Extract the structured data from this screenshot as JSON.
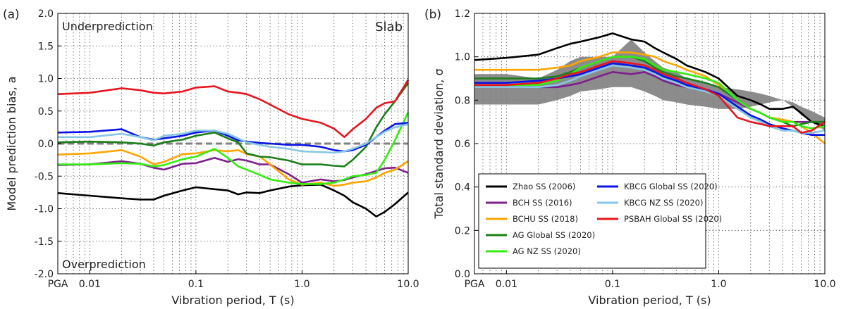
{
  "colors": {
    "zhao": "#000000",
    "bch": "#7d1f8c",
    "bchu": "#ffa500",
    "ag_global": "#1a7f1a",
    "ag_nz": "#33ee11",
    "kbcg_global": "#0a14e6",
    "kbcg_nz": "#87c6e6",
    "psbah": "#e8141e",
    "band": "#808080",
    "zero_line": "#808080"
  },
  "chart_data": [
    {
      "type": "line",
      "panel_label": "(a)",
      "xscale": "log",
      "xlim": [
        0.005,
        10
      ],
      "ylim": [
        -2.0,
        2.0
      ],
      "xlabel": "Vibration period, T (s)",
      "ylabel": "Model prediction bias, a",
      "x_ticks": [
        {
          "value": 0.005,
          "label": "PGA"
        },
        {
          "value": 0.01,
          "label": "0.01"
        },
        {
          "value": 0.1,
          "label": "0.1"
        },
        {
          "value": 1.0,
          "label": "1.0"
        },
        {
          "value": 10.0,
          "label": "10.0"
        }
      ],
      "y_ticks": [
        "-2.0",
        "-1.5",
        "-1.0",
        "-0.5",
        "0.0",
        "0.5",
        "1.0",
        "1.5",
        "2.0"
      ],
      "grid": true,
      "annotations": {
        "top_left": "Underprediction",
        "bottom_left": "Overprediction",
        "top_right": "Slab"
      },
      "reference_line": 0.0,
      "x": [
        0.005,
        0.01,
        0.02,
        0.03,
        0.04,
        0.05,
        0.075,
        0.1,
        0.15,
        0.2,
        0.25,
        0.3,
        0.4,
        0.5,
        0.75,
        1.0,
        1.5,
        2.0,
        2.5,
        3.0,
        4.0,
        5.0,
        6.0,
        7.5,
        10.0
      ],
      "series": [
        {
          "key": "zhao",
          "values": [
            -0.76,
            -0.8,
            -0.84,
            -0.86,
            -0.86,
            -0.8,
            -0.72,
            -0.67,
            -0.7,
            -0.72,
            -0.78,
            -0.75,
            -0.76,
            -0.72,
            -0.66,
            -0.64,
            -0.63,
            -0.72,
            -0.8,
            -0.9,
            -1.0,
            -1.12,
            -1.05,
            -0.93,
            -0.75
          ]
        },
        {
          "key": "bch",
          "values": [
            -0.33,
            -0.32,
            -0.27,
            -0.31,
            -0.37,
            -0.4,
            -0.31,
            -0.3,
            -0.22,
            -0.28,
            -0.24,
            -0.26,
            -0.32,
            -0.32,
            -0.47,
            -0.6,
            -0.55,
            -0.58,
            -0.56,
            -0.52,
            -0.47,
            -0.42,
            -0.38,
            -0.37,
            -0.45
          ]
        },
        {
          "key": "bchu",
          "values": [
            -0.17,
            -0.15,
            -0.1,
            -0.2,
            -0.32,
            -0.28,
            -0.16,
            -0.15,
            -0.1,
            -0.12,
            -0.1,
            -0.16,
            -0.2,
            -0.32,
            -0.55,
            -0.63,
            -0.6,
            -0.65,
            -0.63,
            -0.6,
            -0.58,
            -0.52,
            -0.45,
            -0.4,
            -0.27
          ]
        },
        {
          "key": "ag_global",
          "values": [
            0.02,
            0.03,
            0.02,
            0.0,
            -0.03,
            0.02,
            0.06,
            0.12,
            0.17,
            0.08,
            0.02,
            -0.15,
            -0.2,
            -0.21,
            -0.26,
            -0.32,
            -0.32,
            -0.34,
            -0.35,
            -0.25,
            -0.05,
            0.25,
            0.45,
            0.65,
            0.93
          ]
        },
        {
          "key": "ag_nz",
          "values": [
            -0.32,
            -0.32,
            -0.3,
            -0.31,
            -0.35,
            -0.33,
            -0.24,
            -0.2,
            -0.08,
            -0.22,
            -0.35,
            -0.4,
            -0.48,
            -0.55,
            -0.6,
            -0.62,
            -0.62,
            -0.6,
            -0.55,
            -0.5,
            -0.48,
            -0.45,
            -0.25,
            0.05,
            0.48
          ]
        },
        {
          "key": "kbcg_global",
          "values": [
            0.17,
            0.18,
            0.22,
            0.1,
            0.06,
            0.08,
            0.12,
            0.17,
            0.2,
            0.12,
            0.05,
            0.03,
            0.01,
            0.0,
            -0.02,
            -0.02,
            -0.05,
            -0.1,
            -0.12,
            -0.1,
            -0.02,
            0.1,
            0.2,
            0.3,
            0.32
          ]
        },
        {
          "key": "kbcg_nz",
          "values": [
            0.1,
            0.1,
            0.15,
            0.1,
            0.05,
            0.12,
            0.15,
            0.2,
            0.2,
            0.15,
            0.08,
            0.02,
            -0.02,
            -0.05,
            -0.08,
            -0.12,
            -0.13,
            -0.14,
            -0.12,
            -0.08,
            0.0,
            0.1,
            0.18,
            0.25,
            0.3
          ]
        },
        {
          "key": "psbah",
          "values": [
            0.76,
            0.78,
            0.85,
            0.82,
            0.78,
            0.77,
            0.8,
            0.86,
            0.88,
            0.8,
            0.78,
            0.76,
            0.68,
            0.6,
            0.45,
            0.38,
            0.32,
            0.23,
            0.1,
            0.22,
            0.38,
            0.55,
            0.62,
            0.65,
            0.98
          ]
        }
      ]
    },
    {
      "type": "line",
      "panel_label": "(b)",
      "xscale": "log",
      "xlim": [
        0.005,
        10
      ],
      "ylim": [
        0.0,
        1.2
      ],
      "xlabel": "Vibration period, T (s)",
      "ylabel": "Total standard deviation, σ",
      "x_ticks": [
        {
          "value": 0.005,
          "label": "PGA"
        },
        {
          "value": 0.01,
          "label": "0.01"
        },
        {
          "value": 0.1,
          "label": "0.1"
        },
        {
          "value": 1.0,
          "label": "1.0"
        },
        {
          "value": 10.0,
          "label": "10.0"
        }
      ],
      "y_ticks": [
        "0.0",
        "0.2",
        "0.4",
        "0.6",
        "0.8",
        "1.0",
        "1.2"
      ],
      "grid": true,
      "legend_placement": "lower-left",
      "legend_columns": 2,
      "band": {
        "x": [
          0.005,
          0.01,
          0.02,
          0.03,
          0.04,
          0.05,
          0.075,
          0.1,
          0.15,
          0.2,
          0.25,
          0.3,
          0.4,
          0.5,
          0.75,
          1.0,
          1.5,
          2.0,
          2.5,
          3.0,
          4.0,
          5.0,
          6.0,
          7.5,
          10.0
        ],
        "upper": [
          0.92,
          0.92,
          0.9,
          0.94,
          0.98,
          1.0,
          1.0,
          1.0,
          1.08,
          1.02,
          0.98,
          0.95,
          0.93,
          0.9,
          0.88,
          0.86,
          0.85,
          0.84,
          0.83,
          0.82,
          0.8,
          0.79,
          0.77,
          0.75,
          0.72
        ],
        "lower": [
          0.78,
          0.78,
          0.78,
          0.8,
          0.82,
          0.84,
          0.85,
          0.86,
          0.86,
          0.84,
          0.82,
          0.8,
          0.79,
          0.78,
          0.77,
          0.76,
          0.76,
          0.77,
          0.78,
          0.79,
          0.8,
          0.77,
          0.73,
          0.7,
          0.66
        ]
      },
      "x": [
        0.005,
        0.01,
        0.02,
        0.03,
        0.04,
        0.05,
        0.075,
        0.1,
        0.15,
        0.2,
        0.25,
        0.3,
        0.4,
        0.5,
        0.75,
        1.0,
        1.5,
        2.0,
        2.5,
        3.0,
        4.0,
        5.0,
        6.0,
        7.5,
        10.0
      ],
      "series": [
        {
          "key": "zhao",
          "name": "Zhao SS (2006)",
          "values": [
            0.985,
            0.995,
            1.01,
            1.04,
            1.06,
            1.07,
            1.09,
            1.108,
            1.08,
            1.07,
            1.04,
            1.02,
            0.99,
            0.96,
            0.93,
            0.9,
            0.82,
            0.8,
            0.78,
            0.76,
            0.76,
            0.77,
            0.74,
            0.7,
            0.68
          ]
        },
        {
          "key": "bch",
          "name": "BCH SS (2016)",
          "values": [
            0.86,
            0.86,
            0.86,
            0.86,
            0.87,
            0.88,
            0.91,
            0.93,
            0.92,
            0.93,
            0.91,
            0.89,
            0.87,
            0.86,
            0.84,
            0.83,
            0.79,
            0.76,
            0.74,
            0.72,
            0.71,
            0.7,
            0.7,
            0.7,
            0.7
          ]
        },
        {
          "key": "bchu",
          "name": "BCHU SS (2018)",
          "values": [
            0.94,
            0.94,
            0.94,
            0.95,
            0.96,
            0.98,
            1.0,
            1.02,
            1.02,
            1.01,
            1.0,
            0.98,
            0.96,
            0.94,
            0.91,
            0.87,
            0.8,
            0.76,
            0.74,
            0.72,
            0.71,
            0.7,
            0.68,
            0.65,
            0.6
          ]
        },
        {
          "key": "ag_global",
          "name": "AG Global SS (2020)",
          "values": [
            0.9,
            0.9,
            0.9,
            0.91,
            0.93,
            0.95,
            0.98,
            1.0,
            1.0,
            0.98,
            0.95,
            0.93,
            0.91,
            0.9,
            0.88,
            0.86,
            0.8,
            0.76,
            0.74,
            0.72,
            0.7,
            0.68,
            0.69,
            0.7,
            0.7
          ]
        },
        {
          "key": "ag_nz",
          "name": "AG NZ SS (2020)",
          "values": [
            0.87,
            0.87,
            0.87,
            0.89,
            0.92,
            0.95,
            0.98,
            1.0,
            1.0,
            0.99,
            0.96,
            0.94,
            0.93,
            0.92,
            0.9,
            0.88,
            0.8,
            0.76,
            0.74,
            0.72,
            0.7,
            0.7,
            0.68,
            0.67,
            0.68
          ]
        },
        {
          "key": "kbcg_global",
          "name": "KBCG Global SS (2020)",
          "values": [
            0.88,
            0.88,
            0.89,
            0.9,
            0.91,
            0.92,
            0.95,
            0.97,
            0.96,
            0.95,
            0.93,
            0.91,
            0.89,
            0.87,
            0.85,
            0.83,
            0.77,
            0.73,
            0.71,
            0.69,
            0.67,
            0.66,
            0.65,
            0.64,
            0.64
          ]
        },
        {
          "key": "kbcg_nz",
          "name": "KBCG NZ SS (2020)",
          "values": [
            0.86,
            0.86,
            0.86,
            0.87,
            0.89,
            0.91,
            0.94,
            0.96,
            0.95,
            0.94,
            0.92,
            0.9,
            0.88,
            0.86,
            0.84,
            0.82,
            0.76,
            0.72,
            0.7,
            0.68,
            0.66,
            0.66,
            0.65,
            0.65,
            0.66
          ]
        },
        {
          "key": "psbah",
          "name": "PSBAH Global SS (2020)",
          "values": [
            0.87,
            0.87,
            0.88,
            0.9,
            0.92,
            0.93,
            0.96,
            0.98,
            0.97,
            0.96,
            0.94,
            0.92,
            0.9,
            0.88,
            0.85,
            0.82,
            0.72,
            0.7,
            0.69,
            0.68,
            0.68,
            0.68,
            0.65,
            0.66,
            0.7
          ]
        }
      ]
    }
  ]
}
